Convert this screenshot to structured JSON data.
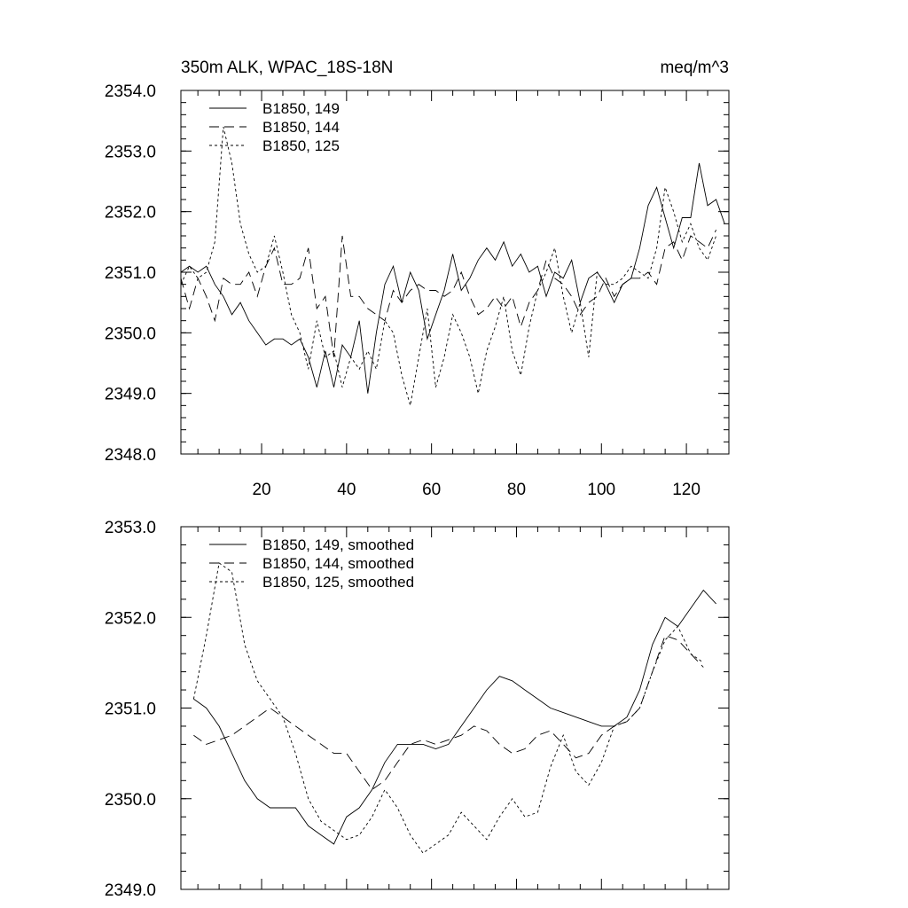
{
  "chart_data": [
    {
      "type": "line",
      "title_left": "350m ALK, WPAC_18S-18N",
      "title_right": "meq/m^3",
      "xlim": [
        1,
        130
      ],
      "ylim": [
        2348.0,
        2354.0
      ],
      "yticks": [
        "2348.0",
        "2349.0",
        "2350.0",
        "2351.0",
        "2352.0",
        "2353.0",
        "2354.0"
      ],
      "xticks": [
        "20",
        "40",
        "60",
        "80",
        "100",
        "120"
      ],
      "legend_position": "top-left",
      "series": [
        {
          "name": "B1850, 149",
          "dash": "solid",
          "x": [
            1,
            3,
            5,
            7,
            9,
            11,
            13,
            15,
            17,
            19,
            21,
            23,
            25,
            27,
            29,
            31,
            33,
            35,
            37,
            39,
            41,
            43,
            45,
            47,
            49,
            51,
            53,
            55,
            57,
            59,
            61,
            63,
            65,
            67,
            69,
            71,
            73,
            75,
            77,
            79,
            81,
            83,
            85,
            87,
            89,
            91,
            93,
            95,
            97,
            99,
            101,
            103,
            105,
            107,
            109,
            111,
            113,
            115,
            117,
            119,
            121,
            123,
            125,
            127,
            129
          ],
          "y": [
            2351.0,
            2351.1,
            2351.0,
            2351.1,
            2350.8,
            2350.6,
            2350.3,
            2350.5,
            2350.2,
            2350.0,
            2349.8,
            2349.9,
            2349.9,
            2349.8,
            2349.9,
            2349.6,
            2349.1,
            2349.7,
            2349.1,
            2349.8,
            2349.6,
            2350.2,
            2349.0,
            2350.0,
            2350.8,
            2351.1,
            2350.5,
            2351.0,
            2350.7,
            2349.9,
            2350.3,
            2350.7,
            2351.3,
            2350.7,
            2350.9,
            2351.2,
            2351.4,
            2351.2,
            2351.5,
            2351.1,
            2351.3,
            2351.0,
            2351.1,
            2350.6,
            2351.0,
            2350.9,
            2351.2,
            2350.5,
            2350.9,
            2351.0,
            2350.8,
            2350.5,
            2350.8,
            2350.9,
            2351.4,
            2352.1,
            2352.4,
            2351.9,
            2351.4,
            2351.9,
            2351.9,
            2352.8,
            2352.1,
            2352.2,
            2351.8
          ]
        },
        {
          "name": "B1850, 144",
          "dash": "long-dash",
          "x": [
            1,
            3,
            5,
            7,
            9,
            11,
            13,
            15,
            17,
            19,
            21,
            23,
            25,
            27,
            29,
            31,
            33,
            35,
            37,
            39,
            41,
            43,
            45,
            47,
            49,
            51,
            53,
            55,
            57,
            59,
            61,
            63,
            65,
            67,
            69,
            71,
            73,
            75,
            77,
            79,
            81,
            83,
            85,
            87,
            89,
            91,
            93,
            95,
            97,
            99,
            101,
            103,
            105,
            107,
            109,
            111,
            113,
            115,
            117,
            119,
            121,
            123,
            125,
            127
          ],
          "y": [
            2350.9,
            2350.4,
            2350.9,
            2350.6,
            2350.2,
            2350.9,
            2350.8,
            2350.8,
            2351.0,
            2350.6,
            2351.1,
            2351.4,
            2350.8,
            2350.8,
            2350.9,
            2351.4,
            2350.4,
            2350.6,
            2349.6,
            2351.6,
            2350.6,
            2350.6,
            2350.4,
            2350.3,
            2350.2,
            2350.7,
            2350.5,
            2350.7,
            2350.8,
            2350.7,
            2350.7,
            2350.6,
            2350.7,
            2351.0,
            2350.6,
            2350.3,
            2350.4,
            2350.6,
            2350.4,
            2350.6,
            2350.1,
            2350.5,
            2350.7,
            2351.2,
            2350.9,
            2350.8,
            2350.6,
            2350.3,
            2350.5,
            2350.6,
            2350.9,
            2350.6,
            2350.8,
            2350.9,
            2350.9,
            2351.0,
            2350.8,
            2351.4,
            2351.5,
            2351.2,
            2351.6,
            2351.5,
            2351.4,
            2351.7
          ]
        },
        {
          "name": "B1850, 125",
          "dash": "short-dash",
          "x": [
            1,
            3,
            5,
            7,
            9,
            11,
            13,
            15,
            17,
            19,
            21,
            23,
            25,
            27,
            29,
            31,
            33,
            35,
            37,
            39,
            41,
            43,
            45,
            47,
            49,
            51,
            53,
            55,
            57,
            59,
            61,
            63,
            65,
            67,
            69,
            71,
            73,
            75,
            77,
            79,
            81,
            83,
            85,
            87,
            89,
            91,
            93,
            95,
            97,
            99,
            101,
            103,
            105,
            107,
            109,
            111,
            113,
            115,
            117,
            119,
            121,
            123,
            125,
            127
          ],
          "y": [
            2350.8,
            2351.1,
            2350.9,
            2351.0,
            2351.5,
            2353.4,
            2352.8,
            2351.8,
            2351.3,
            2351.0,
            2351.1,
            2351.6,
            2351.0,
            2350.3,
            2350.0,
            2349.4,
            2350.2,
            2349.6,
            2349.7,
            2349.1,
            2349.6,
            2349.4,
            2349.7,
            2349.4,
            2350.2,
            2350.0,
            2349.3,
            2348.8,
            2349.6,
            2350.4,
            2349.1,
            2349.6,
            2350.3,
            2350.0,
            2349.6,
            2349.0,
            2349.7,
            2350.1,
            2350.6,
            2349.7,
            2349.3,
            2350.1,
            2350.7,
            2351.0,
            2351.4,
            2350.6,
            2350.0,
            2350.5,
            2349.6,
            2351.0,
            2350.8,
            2350.8,
            2350.9,
            2351.1,
            2351.0,
            2350.9,
            2351.4,
            2352.4,
            2352.0,
            2351.5,
            2351.8,
            2351.4,
            2351.2,
            2351.6
          ]
        }
      ]
    },
    {
      "type": "line",
      "title_left": "",
      "title_right": "",
      "xlim": [
        1,
        130
      ],
      "ylim": [
        2349.0,
        2353.0
      ],
      "yticks": [
        "2349.0",
        "2350.0",
        "2351.0",
        "2352.0",
        "2353.0"
      ],
      "xticks": [],
      "legend_position": "top-left",
      "series": [
        {
          "name": "B1850, 149, smoothed",
          "dash": "solid",
          "x": [
            4,
            7,
            10,
            13,
            16,
            19,
            22,
            25,
            28,
            31,
            34,
            37,
            40,
            43,
            46,
            49,
            52,
            55,
            58,
            61,
            64,
            67,
            70,
            73,
            76,
            79,
            82,
            85,
            88,
            91,
            94,
            97,
            100,
            103,
            106,
            109,
            112,
            115,
            118,
            121,
            124,
            127
          ],
          "y": [
            2351.1,
            2351.0,
            2350.8,
            2350.5,
            2350.2,
            2350.0,
            2349.9,
            2349.9,
            2349.9,
            2349.7,
            2349.6,
            2349.5,
            2349.8,
            2349.9,
            2350.1,
            2350.4,
            2350.6,
            2350.6,
            2350.6,
            2350.55,
            2350.6,
            2350.8,
            2351.0,
            2351.2,
            2351.35,
            2351.3,
            2351.2,
            2351.1,
            2351.0,
            2350.95,
            2350.9,
            2350.85,
            2350.8,
            2350.8,
            2350.9,
            2351.2,
            2351.7,
            2352.0,
            2351.9,
            2352.1,
            2352.3,
            2352.15
          ]
        },
        {
          "name": "B1850, 144, smoothed",
          "dash": "long-dash",
          "x": [
            4,
            7,
            10,
            13,
            16,
            19,
            22,
            25,
            28,
            31,
            34,
            37,
            40,
            43,
            46,
            49,
            52,
            55,
            58,
            61,
            64,
            67,
            70,
            73,
            76,
            79,
            82,
            85,
            88,
            91,
            94,
            97,
            100,
            103,
            106,
            109,
            112,
            115,
            118,
            121,
            124
          ],
          "y": [
            2350.7,
            2350.6,
            2350.65,
            2350.7,
            2350.8,
            2350.9,
            2351.0,
            2350.9,
            2350.8,
            2350.7,
            2350.6,
            2350.5,
            2350.5,
            2350.3,
            2350.1,
            2350.2,
            2350.4,
            2350.6,
            2350.65,
            2350.6,
            2350.65,
            2350.7,
            2350.8,
            2350.75,
            2350.6,
            2350.5,
            2350.55,
            2350.7,
            2350.75,
            2350.6,
            2350.45,
            2350.5,
            2350.7,
            2350.8,
            2350.85,
            2351.0,
            2351.4,
            2351.8,
            2351.75,
            2351.6,
            2351.45
          ]
        },
        {
          "name": "B1850, 125, smoothed",
          "dash": "short-dash",
          "x": [
            4,
            7,
            10,
            13,
            16,
            19,
            22,
            25,
            28,
            31,
            34,
            37,
            40,
            43,
            46,
            49,
            52,
            55,
            58,
            61,
            64,
            67,
            70,
            73,
            76,
            79,
            82,
            85,
            88,
            91,
            94,
            97,
            100,
            103,
            106,
            109,
            112,
            115,
            118,
            121,
            124
          ],
          "y": [
            2351.1,
            2351.8,
            2352.6,
            2352.5,
            2351.7,
            2351.3,
            2351.1,
            2350.9,
            2350.5,
            2350.0,
            2349.75,
            2349.65,
            2349.55,
            2349.6,
            2349.8,
            2350.1,
            2349.9,
            2349.6,
            2349.4,
            2349.5,
            2349.6,
            2349.85,
            2349.7,
            2349.55,
            2349.8,
            2350.0,
            2349.8,
            2349.85,
            2350.35,
            2350.7,
            2350.3,
            2350.15,
            2350.4,
            2350.8,
            2350.85,
            2351.0,
            2351.4,
            2351.75,
            2351.9,
            2351.6,
            2351.5
          ]
        }
      ]
    }
  ]
}
